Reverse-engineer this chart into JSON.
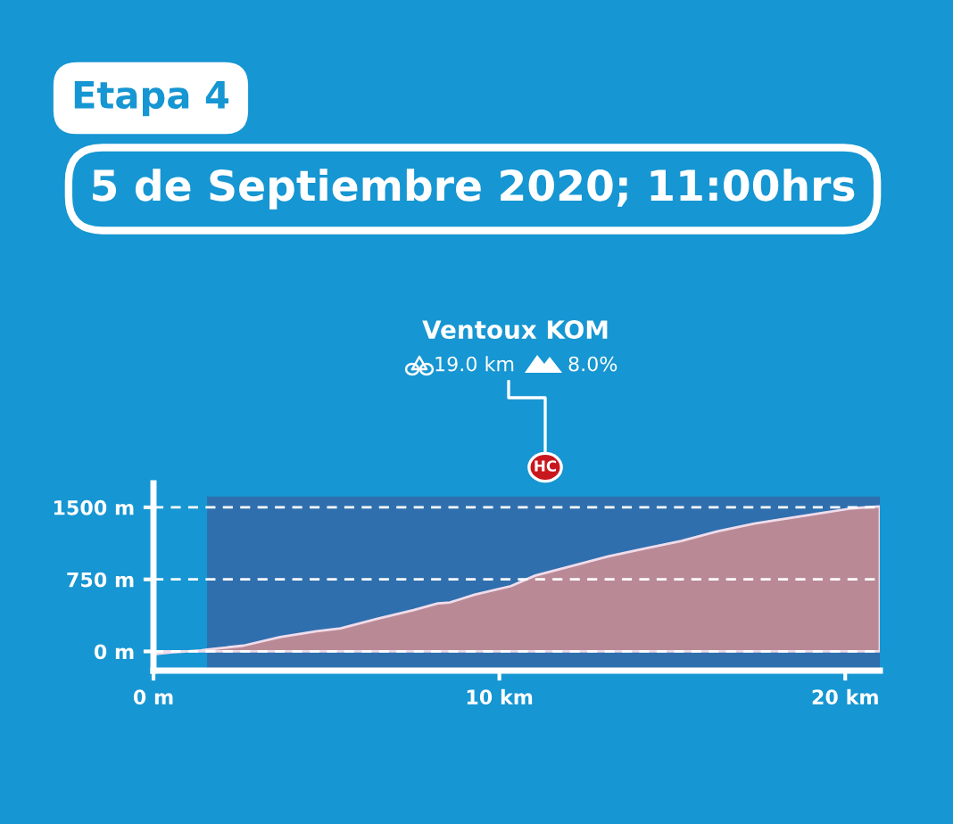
{
  "chart_data": {
    "type": "area",
    "title": "Etapa 4",
    "subtitle": "5 de Septiembre 2020; 11:00hrs",
    "annotations": [
      "Ventoux KOM",
      "19.0 km",
      "8.0%",
      "HC"
    ],
    "series": [
      {
        "color": "#a9a9b4",
        "x": [
          0,
          0.5,
          1.0,
          1.37,
          1.55
        ],
        "values": [
          -30,
          -10,
          0,
          10,
          20
        ]
      },
      {
        "color": "#b98a96",
        "x": [
          1.55,
          2.6,
          3.66,
          4.71,
          5.41,
          6.47,
          7.52,
          8.22,
          8.57,
          9.28,
          10.33,
          11.04,
          12.1,
          13.15,
          14.2,
          15.26,
          16.3,
          17.37,
          18.6,
          19.3,
          20.2,
          21.0
        ],
        "values": [
          20,
          60,
          150,
          210,
          240,
          340,
          430,
          500,
          510,
          590,
          680,
          790,
          890,
          990,
          1070,
          1150,
          1250,
          1330,
          1400,
          1440,
          1490,
          1510
        ]
      }
    ],
    "bands": [
      {
        "axis": "x",
        "from": 1.55,
        "to": 21.0,
        "color": "#2f6fae"
      }
    ],
    "xlim": [
      0,
      21
    ],
    "ylim": [
      -200,
      1750
    ],
    "xticks": [
      {
        "value": 0,
        "label": "0 m"
      },
      {
        "value": 10,
        "label": "10 km"
      },
      {
        "value": 20,
        "label": "20 km"
      }
    ],
    "yticks": [
      {
        "value": 0,
        "label": "0 m"
      },
      {
        "value": 750,
        "label": "750 m"
      },
      {
        "value": 1500,
        "label": "1500 m"
      }
    ],
    "grid": "y"
  }
}
